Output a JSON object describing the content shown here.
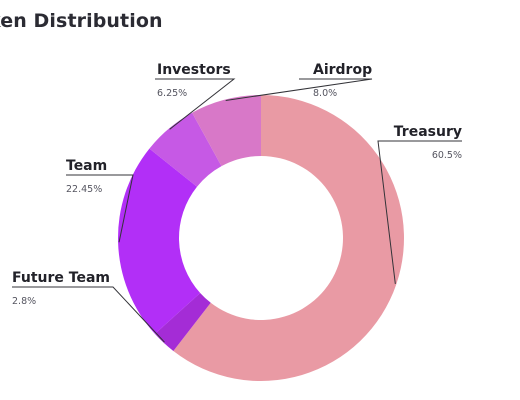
{
  "chart_data": {
    "type": "pie",
    "title": "ken Distribution",
    "donut": true,
    "legend": "callout labels beside slices",
    "slices": [
      {
        "label": "Treasury",
        "value": 60.5,
        "value_label": "60.5%",
        "color": "#e99aa4"
      },
      {
        "label": "Future Team",
        "value": 2.8,
        "value_label": "2.8%",
        "color": "#a42cd6"
      },
      {
        "label": "Team",
        "value": 22.45,
        "value_label": "22.45%",
        "color": "#b22ff7"
      },
      {
        "label": "Investors",
        "value": 6.25,
        "value_label": "6.25%",
        "color": "#c659e5"
      },
      {
        "label": "Airdrop",
        "value": 8.0,
        "value_label": "8.0%",
        "color": "#d878c8"
      }
    ]
  }
}
